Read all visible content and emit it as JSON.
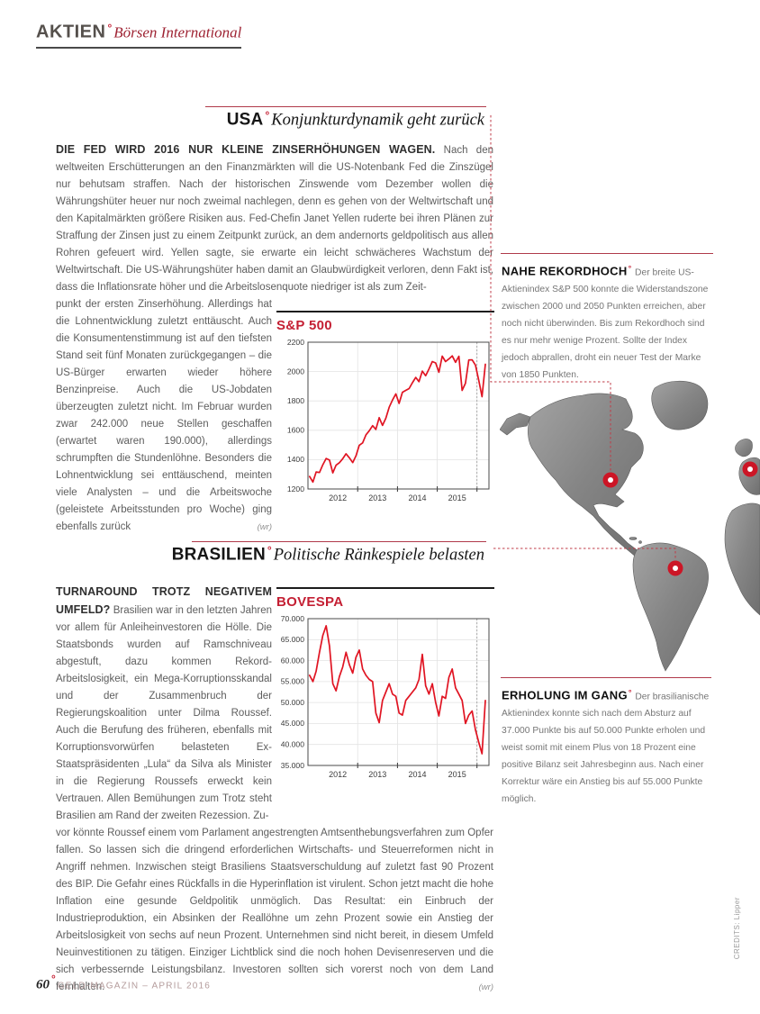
{
  "header": {
    "section": "AKTIEN",
    "deg": "°",
    "subsection": "Börsen International"
  },
  "usa": {
    "title": "USA",
    "deg": "°",
    "subtitle": "Konjunkturdynamik geht zurück",
    "lead": "DIE FED WIRD 2016 NUR KLEINE ZINSERHÖHUNGEN WAGEN.",
    "body_full": "Nach den weltweiten Erschütterungen an den Finanzmärkten will die US-Notenbank Fed die Zinszügel nur behutsam straffen. Nach der historischen Zinswende vom Dezember wollen die Währungshüter heuer nur noch zweimal nachlegen, denn es gehen von der Weltwirtschaft und den Kapitalmärkten größere Risiken aus. Fed-Chefin Janet Yellen ruderte bei ihren Plänen zur Straffung der Zinsen just zu einem Zeitpunkt zurück, an dem andernorts geldpolitisch aus allen Rohren gefeuert wird. Yellen sagte, sie erwarte ein leicht schwächeres Wachstum der Weltwirtschaft. Die US-Währungshüter haben damit an Glaubwürdigkeit verloren, denn Fakt ist, dass die Inflationsrate höher und die Arbeitslosenquote niedriger ist als zum Zeit-",
    "body_col": "punkt der ersten Zinserhöhung. Allerdings hat die Lohnentwicklung zuletzt enttäuscht. Auch die Konsumentenstimmung ist auf den tiefsten Stand seit fünf Monaten zurückgegangen – die US-Bürger erwarten wieder höhere Benzinpreise. Auch die US-Jobdaten überzeugten zuletzt nicht. Im Februar wurden zwar 242.000 neue Stellen geschaffen (erwartet waren 190.000), allerdings schrumpften die Stundenlöhne. Besonders die Lohnentwicklung sei enttäuschend, meinten viele Analysten – und die Arbeitswoche (geleistete Arbeitsstunden pro Woche) ging ebenfalls zurück",
    "byline": "(wr)",
    "sidebar": {
      "title": "NAHE REKORDHOCH",
      "deg": "°",
      "text": "Der breite US-Aktienindex S&P 500 konnte die Widerstandszone zwischen 2000 und 2050 Punkten erreichen, aber noch nicht überwinden. Bis zum Rekordhoch sind es nur mehr wenige Prozent. Sollte der Index jedoch abprallen, droht ein neuer Test der Marke von 1850 Punkten."
    }
  },
  "brazil": {
    "title": "BRASILIEN",
    "deg": "°",
    "subtitle": "Politische Ränkespiele belasten",
    "lead": "TURNAROUND TROTZ NEGATIVEM UMFELD?",
    "body_col": "Brasilien war in den letzten Jahren vor allem für Anleiheinvestoren die Hölle. Die Staatsbonds wurden auf Ramschniveau abgestuft, dazu kommen Rekord-Arbeitslosigkeit, ein Mega-Korruptionsskandal und der Zusammenbruch der Regierungskoalition unter Dilma Roussef. Auch die Berufung des früheren, ebenfalls mit Korruptionsvorwürfen belasteten Ex-Staatspräsidenten „Lula“ da Silva als Minister in die Regierung Roussefs erweckt kein Vertrauen. Allen Bemühungen zum Trotz steht Brasilien am Rand der zweiten Rezession. Zu-",
    "body_full": "vor könnte Roussef einem vom Parlament angestrengten Amtsenthebungsverfahren zum Opfer fallen. So lassen sich die dringend erforderlichen Wirtschafts- und Steuerreformen nicht in Angriff nehmen. Inzwischen steigt Brasiliens Staatsverschuldung auf zuletzt fast 90 Prozent des BIP. Die Gefahr eines Rückfalls in die Hyperinflation ist virulent. Schon jetzt macht die hohe Inflation eine gesunde Geldpolitik unmöglich. Das Resultat: ein Einbruch der Industrieproduktion, ein Absinken der Reallöhne um zehn Prozent sowie ein Anstieg der Arbeitslosigkeit von sechs auf neun Prozent. Unternehmen sind nicht bereit, in diesem Umfeld Neuinvestitionen zu tätigen. Einziger Lichtblick sind die noch hohen Devisenreserven und die sich verbessernde Leistungsbilanz. Investoren sollten sich vorerst noch von dem Land fernhalten.",
    "byline": "(wr)",
    "sidebar": {
      "title": "ERHOLUNG IM GANG",
      "deg": "°",
      "text": "Der brasilianische Aktienindex konnte sich nach dem Absturz auf 37.000 Punkte bis auf 50.000 Punkte erholen und weist somit mit einem Plus von 18 Prozent eine positive Bilanz seit Jahresbeginn aus. Nach einer Korrektur wäre ein Anstieg bis auf 55.000 Punkte möglich."
    }
  },
  "footer": {
    "page_number": "60",
    "deg": "°",
    "magazine": "GELD-MAGAZIN – APRIL 2016"
  },
  "credits": "CREDITS: Lipper",
  "chart_data": [
    {
      "type": "line",
      "title": "S&P 500",
      "x_range": [
        2011.75,
        2016.3
      ],
      "x_labels": [
        {
          "label": "2012",
          "at": 2012.5
        },
        {
          "label": "2013",
          "at": 2013.5
        },
        {
          "label": "2014",
          "at": 2014.5
        },
        {
          "label": "2015",
          "at": 2015.5
        }
      ],
      "x_year_ticks": [
        2013,
        2014,
        2015,
        2016
      ],
      "ylim": [
        1200,
        2200
      ],
      "yticks": [
        1200,
        1400,
        1600,
        1800,
        2000,
        2200
      ],
      "ytick_labels": [
        "1200",
        "1400",
        "1600",
        "1800",
        "2000",
        "2200"
      ],
      "marker_line_at": 2016,
      "line_color": "#e01422",
      "grid": true,
      "series": [
        {
          "name": "S&P 500",
          "x_start": 2011.79,
          "x_end": 2016.21,
          "values": [
            1285,
            1247,
            1316,
            1312,
            1365,
            1408,
            1397,
            1310,
            1362,
            1379,
            1406,
            1440,
            1412,
            1380,
            1426,
            1498,
            1514,
            1569,
            1597,
            1631,
            1606,
            1686,
            1633,
            1682,
            1757,
            1806,
            1848,
            1783,
            1859,
            1872,
            1884,
            1924,
            1960,
            1931,
            2003,
            1972,
            2018,
            2068,
            2059,
            1995,
            2105,
            2068,
            2086,
            2107,
            2063,
            2104,
            1872,
            1920,
            2079,
            2080,
            2044,
            1940,
            1829,
            2050
          ]
        }
      ]
    },
    {
      "type": "line",
      "title": "BOVESPA",
      "x_range": [
        2011.75,
        2016.3
      ],
      "x_labels": [
        {
          "label": "2012",
          "at": 2012.5
        },
        {
          "label": "2013",
          "at": 2013.5
        },
        {
          "label": "2014",
          "at": 2014.5
        },
        {
          "label": "2015",
          "at": 2015.5
        }
      ],
      "x_year_ticks": [
        2013,
        2014,
        2015,
        2016
      ],
      "ylim": [
        35000,
        70000
      ],
      "yticks": [
        35000,
        40000,
        45000,
        50000,
        55000,
        60000,
        65000,
        70000
      ],
      "ytick_labels": [
        "35.000",
        "40.000",
        "45.000",
        "50.000",
        "55.000",
        "60.000",
        "65.000",
        "70.000"
      ],
      "marker_line_at": 2016,
      "line_color": "#e01422",
      "grid": true,
      "series": [
        {
          "name": "BOVESPA",
          "x_start": 2011.79,
          "x_end": 2016.21,
          "values": [
            56500,
            55000,
            57500,
            62000,
            66000,
            68300,
            63500,
            54500,
            52800,
            56200,
            58500,
            62000,
            59000,
            57000,
            60800,
            62500,
            58000,
            56500,
            55500,
            55000,
            47500,
            45200,
            50500,
            52500,
            54500,
            52000,
            51500,
            47500,
            47000,
            50500,
            51500,
            52500,
            53500,
            55500,
            61500,
            54000,
            52000,
            54500,
            50000,
            46800,
            51500,
            51000,
            56000,
            58000,
            53500,
            52000,
            50500,
            45000,
            47000,
            48000,
            43500,
            40500,
            37800,
            50500
          ]
        }
      ]
    }
  ]
}
